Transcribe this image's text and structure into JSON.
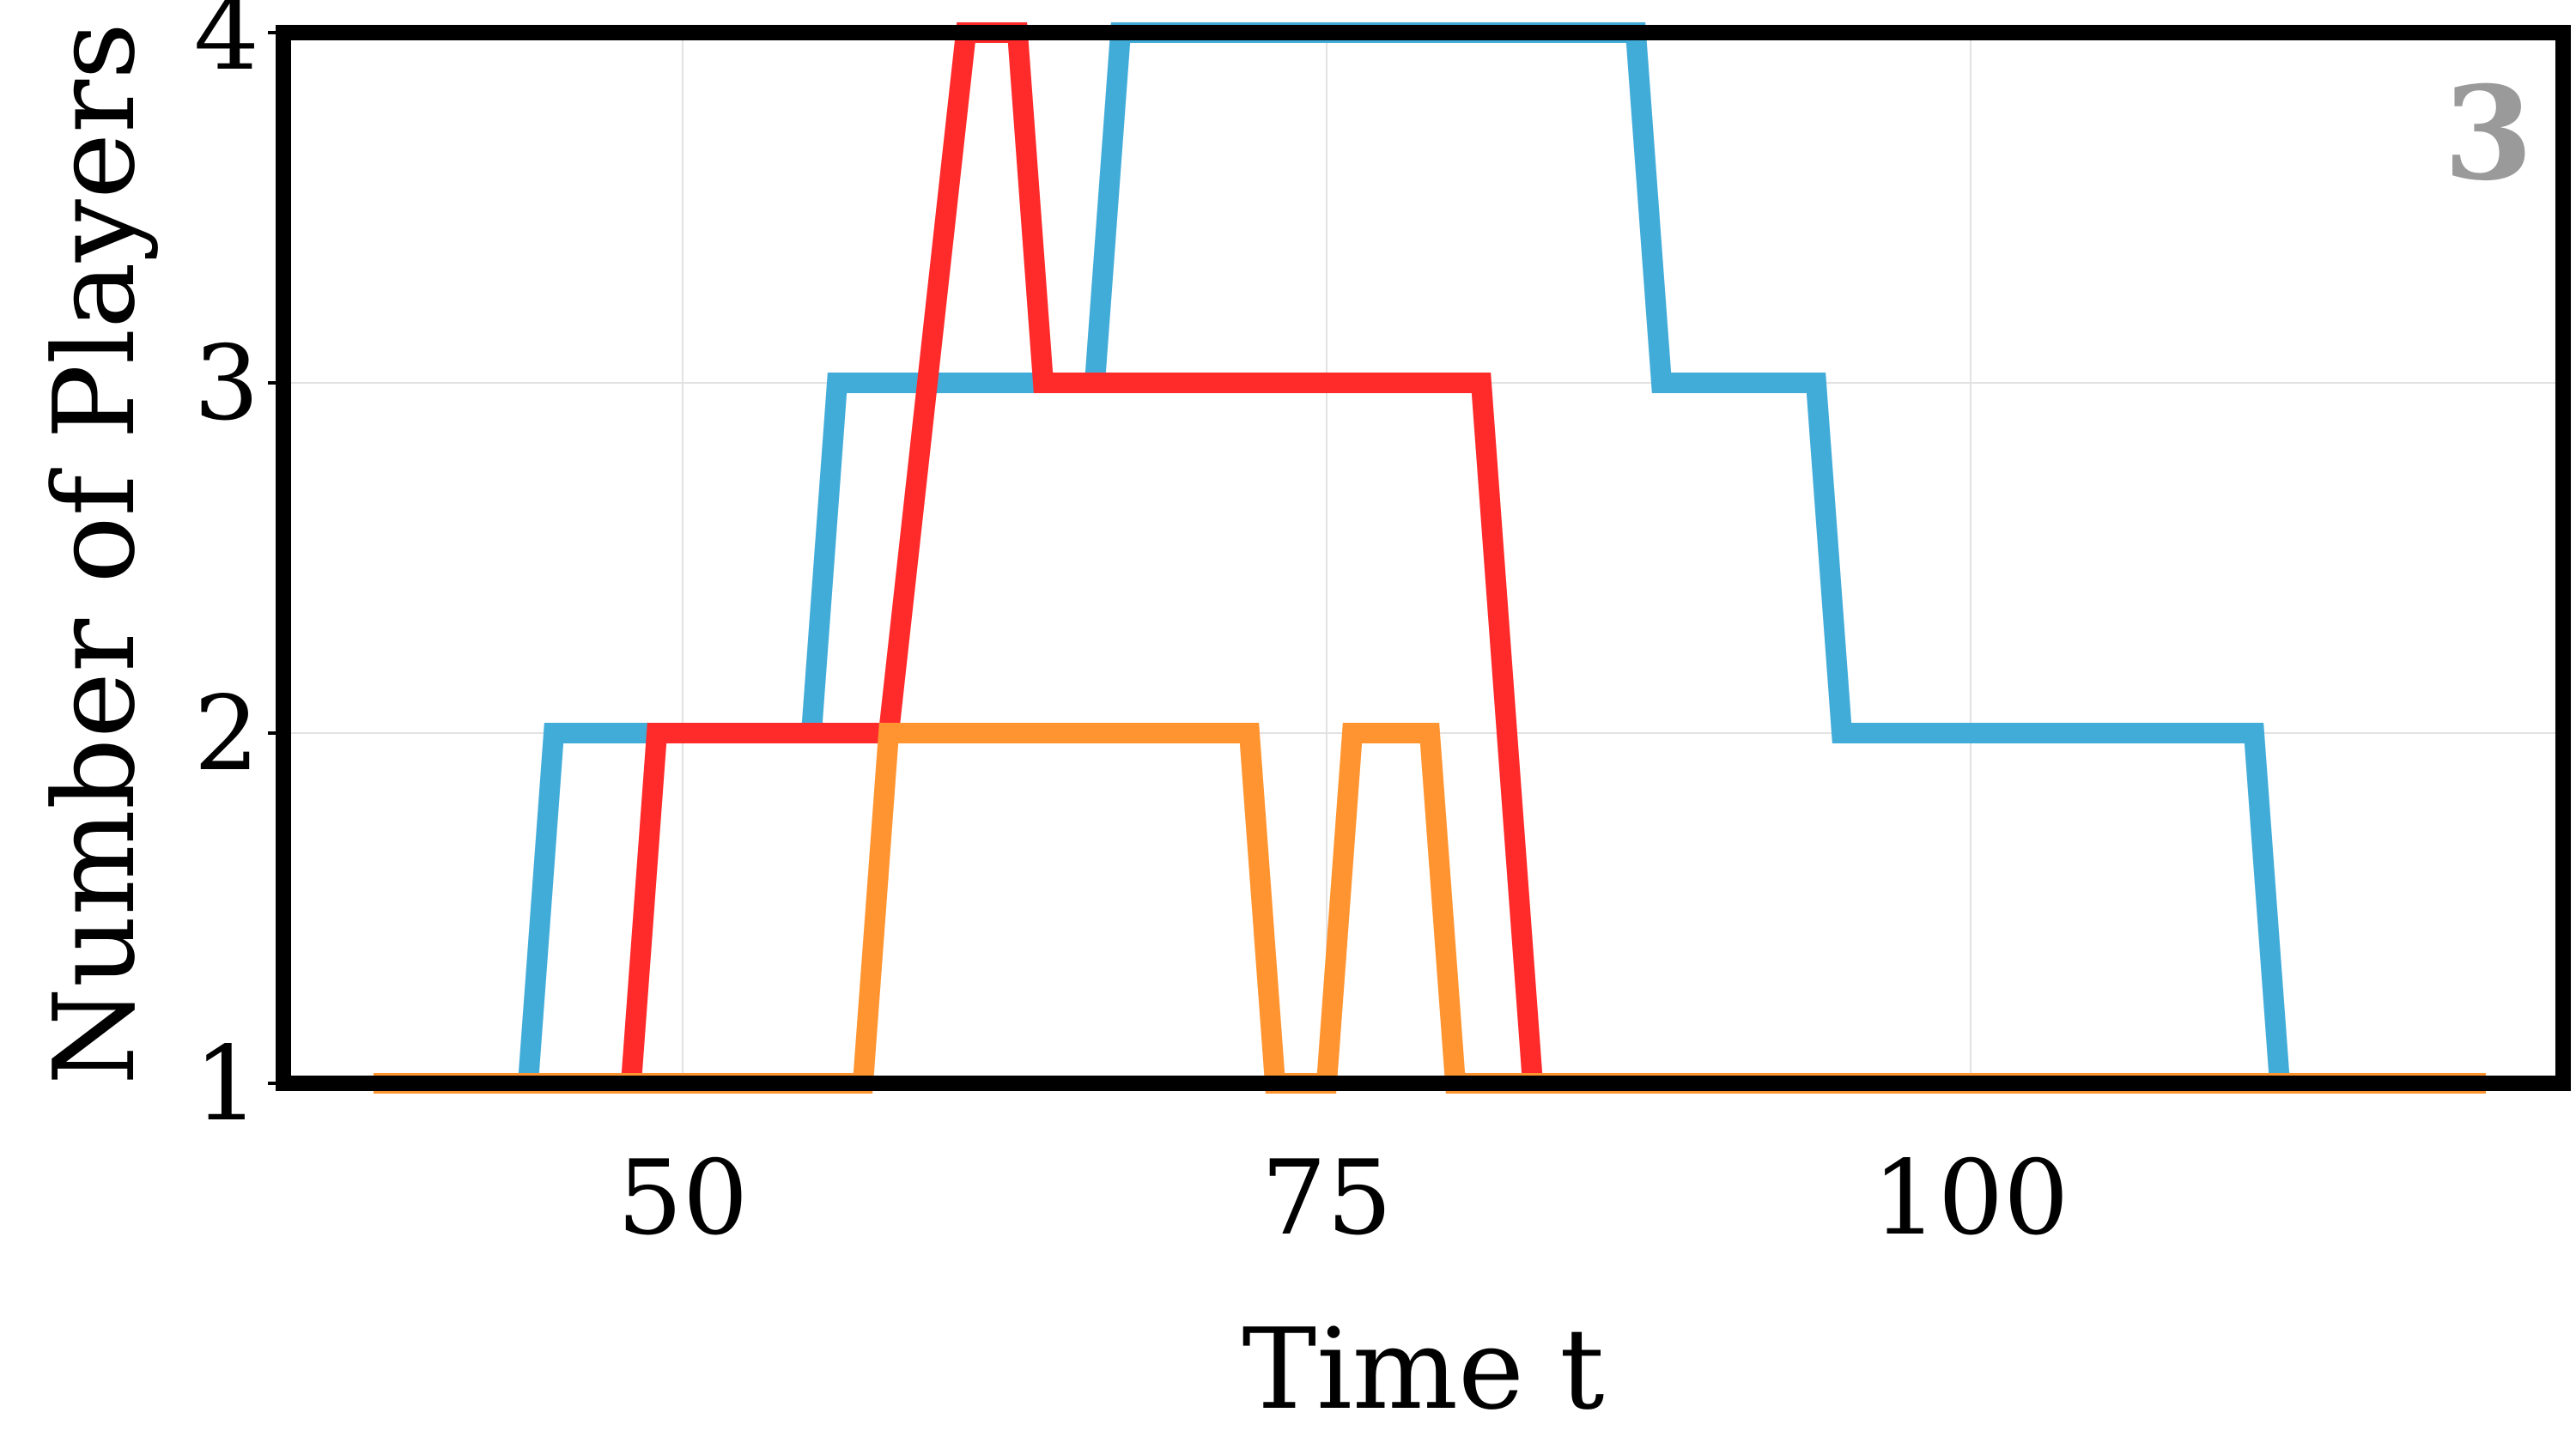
{
  "chart_data": {
    "type": "line",
    "title": "",
    "panel_label": "3",
    "xlabel": "Time t",
    "ylabel": "Number of Players",
    "xlim": [
      34.5,
      123
    ],
    "ylim": [
      1,
      4
    ],
    "xticks": [
      50,
      75,
      100
    ],
    "yticks": [
      1,
      2,
      3,
      4
    ],
    "grid": true,
    "legend": "none",
    "series": [
      {
        "color": "#42acd9",
        "points": [
          [
            40,
            1
          ],
          [
            44,
            1
          ],
          [
            45,
            2
          ],
          [
            55,
            2
          ],
          [
            56,
            3
          ],
          [
            66,
            3
          ],
          [
            67,
            4
          ],
          [
            87,
            4
          ],
          [
            88,
            3
          ],
          [
            94,
            3
          ],
          [
            95,
            2
          ],
          [
            111,
            2
          ],
          [
            112,
            1
          ],
          [
            115,
            1
          ]
        ]
      },
      {
        "color": "#ff2a2a",
        "points": [
          [
            40,
            1
          ],
          [
            48,
            1
          ],
          [
            49,
            2
          ],
          [
            58,
            2
          ],
          [
            61,
            4
          ],
          [
            63,
            4
          ],
          [
            64,
            3
          ],
          [
            81,
            3
          ],
          [
            83,
            1
          ],
          [
            120,
            1
          ]
        ]
      },
      {
        "color": "#ff9430",
        "points": [
          [
            38,
            1
          ],
          [
            57,
            1
          ],
          [
            58,
            2
          ],
          [
            72,
            2
          ],
          [
            73,
            1
          ],
          [
            75,
            1
          ],
          [
            76,
            2
          ],
          [
            79,
            2
          ],
          [
            80,
            1
          ],
          [
            120,
            1
          ]
        ]
      }
    ]
  }
}
